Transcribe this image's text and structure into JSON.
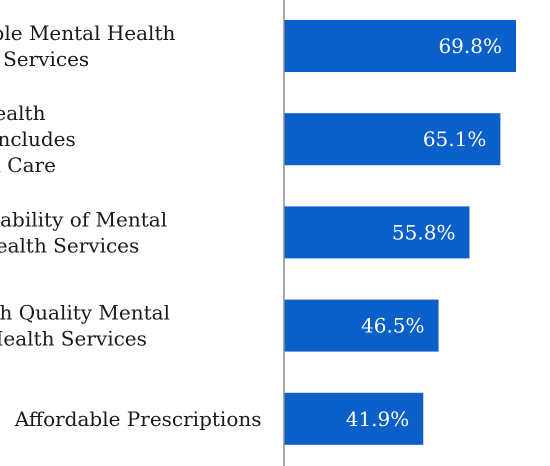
{
  "chart_data": {
    "type": "bar",
    "orientation": "horizontal",
    "categories": [
      [
        "Affordable Mental Health",
        "Services"
      ],
      [
        "Affordable Health",
        "Insurance that Includes",
        "Mental Health Care"
      ],
      [
        "Availability of Mental",
        "Health Services"
      ],
      [
        "High Quality Mental",
        "Health Services"
      ],
      [
        "Affordable Prescriptions"
      ]
    ],
    "values": [
      69.8,
      65.1,
      55.8,
      46.5,
      41.9
    ],
    "data_labels": [
      "69.8%",
      "65.1%",
      "55.8%",
      "46.5%",
      "41.9%"
    ],
    "unit": "%",
    "xlim": [
      0,
      100
    ],
    "grid": false,
    "legend": "none",
    "colors": {
      "bar": "#0a5fc8",
      "axis": "#8c8c8c"
    }
  }
}
